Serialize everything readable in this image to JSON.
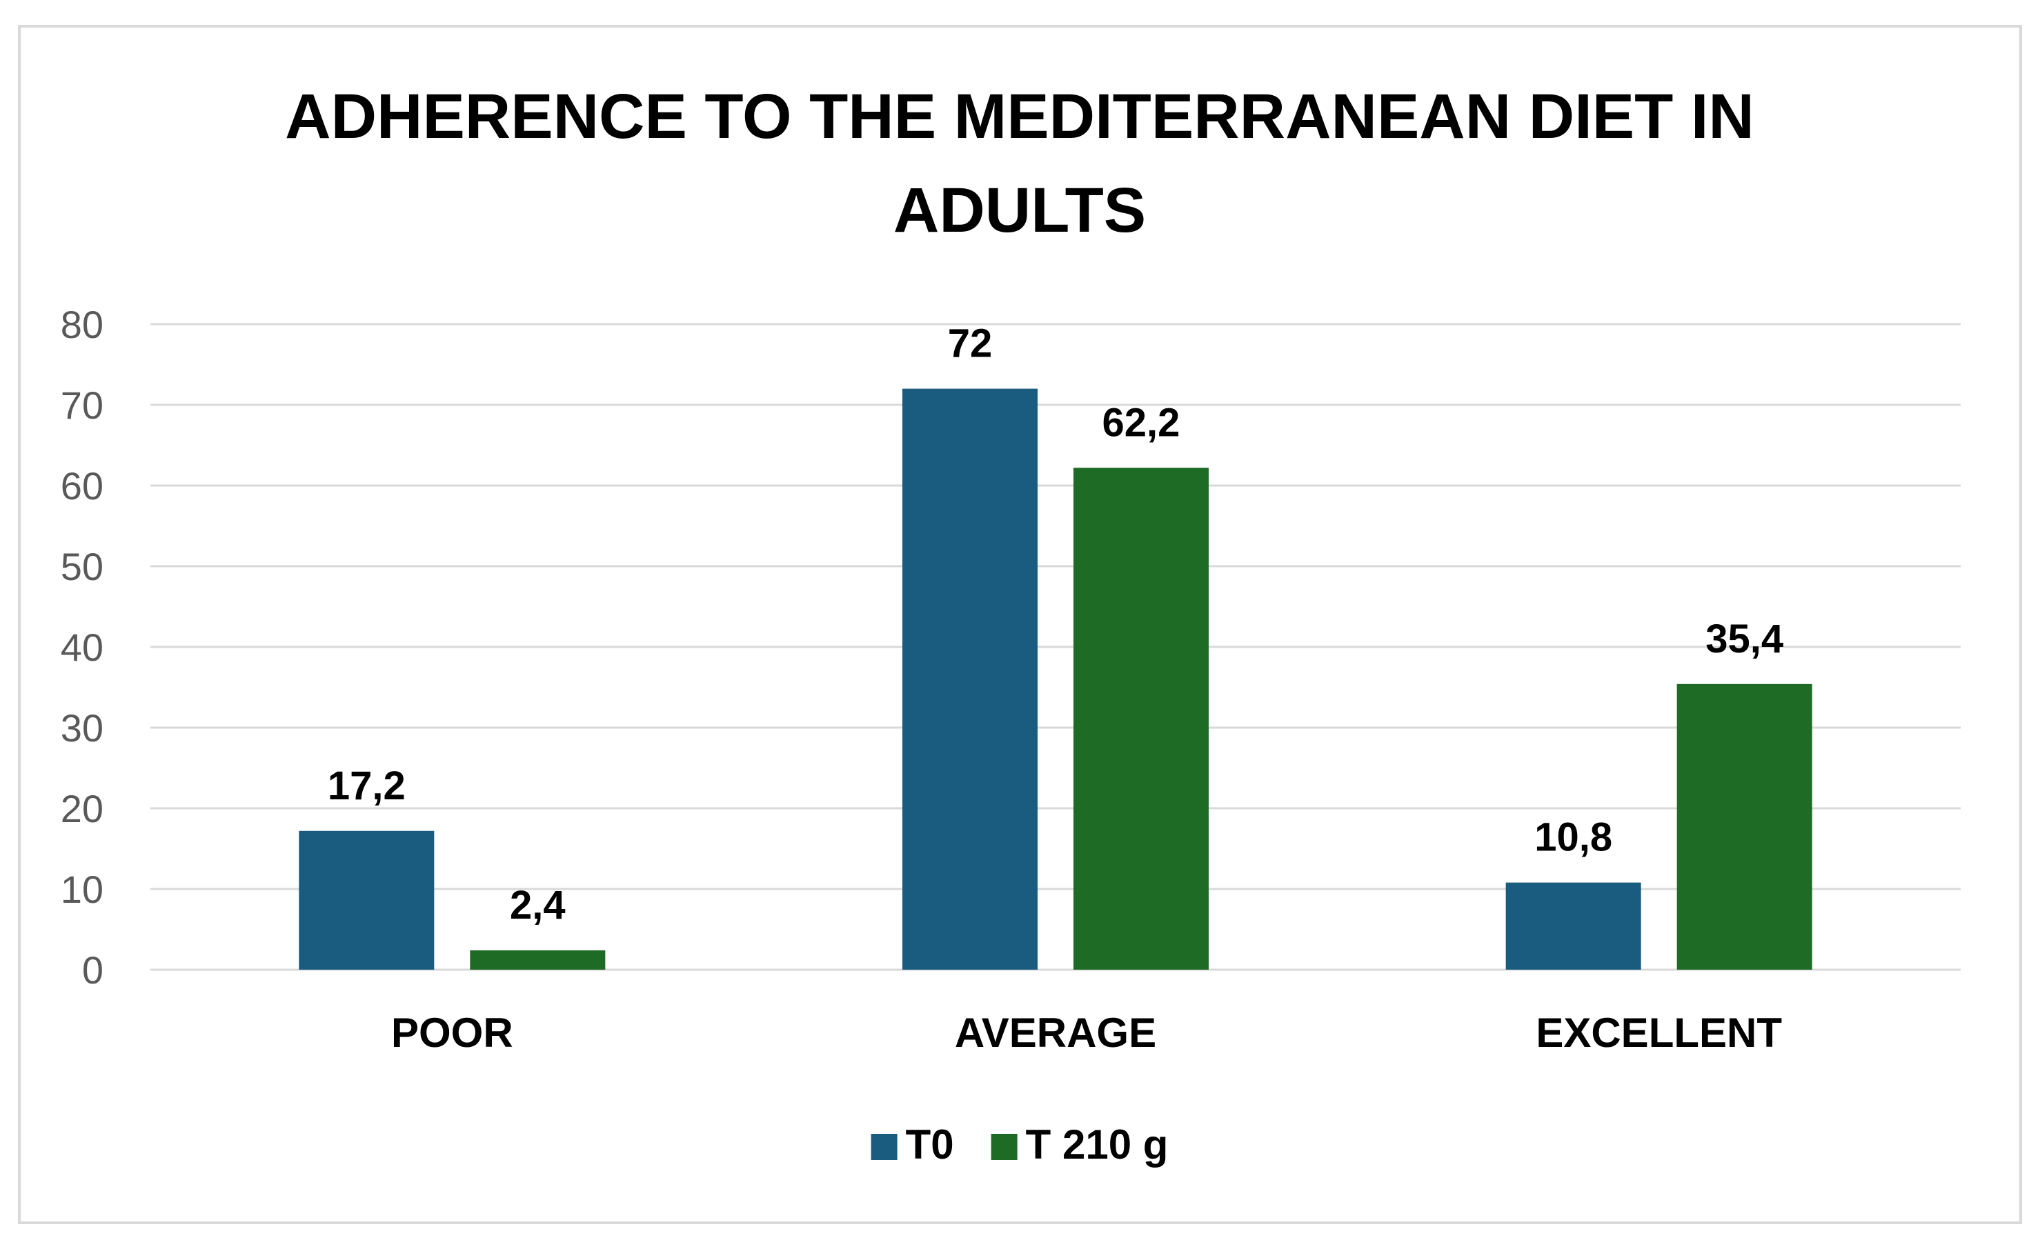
{
  "chart_data": {
    "type": "bar",
    "title_lines": [
      "ADHERENCE TO THE MEDITERRANEAN DIET IN",
      "ADULTS"
    ],
    "categories": [
      "POOR",
      "AVERAGE",
      "EXCELLENT"
    ],
    "series": [
      {
        "name": "T0",
        "color": "#1a5c80",
        "values": [
          17.2,
          72,
          10.8
        ],
        "labels": [
          "17,2",
          "72",
          "10,8"
        ]
      },
      {
        "name": "T 210 g",
        "color": "#1e6b26",
        "values": [
          2.4,
          62.2,
          35.4
        ],
        "labels": [
          "2,4",
          "62,2",
          "35,4"
        ]
      }
    ],
    "ylim": [
      0,
      80
    ],
    "yticks": [
      0,
      10,
      20,
      30,
      40,
      50,
      60,
      70,
      80
    ],
    "grid": true,
    "legend_position": "bottom"
  }
}
